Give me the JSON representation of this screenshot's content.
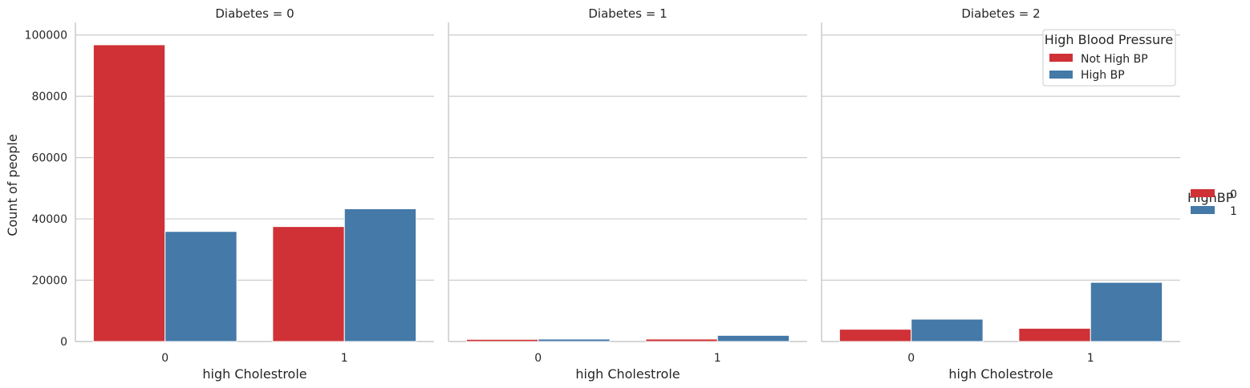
{
  "chart_data": {
    "type": "bar",
    "ylabel": "Count of people",
    "xlabel": "high Cholestrole",
    "ylim": [
      0,
      102000
    ],
    "yticks": [
      0,
      20000,
      40000,
      60000,
      80000,
      100000
    ],
    "categories": [
      "0",
      "1"
    ],
    "grid": true,
    "colors": {
      "0": "#cf3136",
      "1": "#4479a8"
    },
    "panels": [
      {
        "title": "Diabetes = 0",
        "xlabel": "high Cholestrole",
        "series": [
          {
            "name": "0",
            "values": [
              96800,
              37500
            ]
          },
          {
            "name": "1",
            "values": [
              35900,
              43300
            ]
          }
        ]
      },
      {
        "title": "Diabetes = 1",
        "xlabel": "high Cholestrole",
        "series": [
          {
            "name": "0",
            "values": [
              700,
              800
            ]
          },
          {
            "name": "1",
            "values": [
              800,
              2000
            ]
          }
        ]
      },
      {
        "title": "Diabetes = 2",
        "xlabel": "high Cholestrole",
        "series": [
          {
            "name": "0",
            "values": [
              4000,
              4300
            ]
          },
          {
            "name": "1",
            "values": [
              7300,
              19300
            ]
          }
        ]
      }
    ],
    "inner_legend": {
      "title": "High Blood Pressure",
      "placement": "top-right of panel Diabetes = 2",
      "entries": [
        {
          "label": "Not High BP",
          "series": "0"
        },
        {
          "label": "High BP",
          "series": "1"
        }
      ]
    },
    "outer_legend": {
      "title": "HighBP",
      "placement": "right",
      "entries": [
        {
          "label": "0",
          "series": "0"
        },
        {
          "label": "1",
          "series": "1"
        }
      ]
    }
  }
}
